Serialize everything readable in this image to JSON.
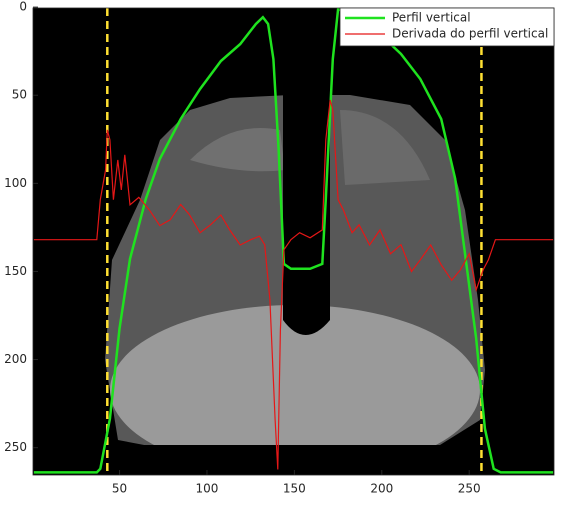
{
  "chart_data": {
    "type": "line",
    "xlim": [
      0.5,
      298.5
    ],
    "ylim": [
      265.5,
      0.5
    ],
    "xticks": [
      50,
      100,
      150,
      200,
      250
    ],
    "yticks": [
      0,
      50,
      100,
      150,
      200,
      250
    ],
    "legend": "upper right",
    "vlines": {
      "color": "#ffe033",
      "values": [
        43,
        257
      ]
    },
    "series": [
      {
        "name": "Perfil vertical",
        "color": "#1fe21f",
        "x": [
          1,
          37,
          39,
          44.5,
          50,
          56,
          65,
          73,
          85,
          96,
          108,
          119,
          128,
          132,
          135,
          138,
          141,
          144,
          148,
          159,
          166,
          168,
          172,
          175,
          182,
          199,
          211,
          222,
          234,
          242,
          248,
          254,
          259,
          264,
          268,
          298
        ],
        "values": [
          264,
          264,
          262,
          233.6,
          182.5,
          142.9,
          108.8,
          86.2,
          63.5,
          46.5,
          30.6,
          21,
          9.6,
          5.7,
          9.6,
          29.5,
          80.5,
          145.7,
          148.5,
          148.5,
          145.7,
          108.8,
          29.5,
          1.1,
          4,
          15.3,
          26.6,
          40.8,
          63.5,
          97.5,
          142.9,
          188.2,
          239.2,
          262,
          264,
          264
        ]
      },
      {
        "name": "Derivada do perfil vertical",
        "color": "#e51717",
        "x": [
          1,
          37,
          39,
          42,
          43,
          44.5,
          46.5,
          49,
          51,
          53,
          56,
          61,
          67,
          73,
          79,
          85,
          90,
          96,
          102,
          108,
          113,
          119,
          125,
          130,
          133,
          136,
          139,
          140.5,
          142,
          144,
          148,
          153,
          159,
          166,
          168,
          170.5,
          172,
          175,
          178,
          183,
          187,
          193,
          199,
          205,
          211,
          217,
          222,
          228,
          234,
          240,
          245,
          250,
          254,
          258,
          261,
          265,
          298
        ],
        "values": [
          132,
          132,
          109.3,
          92.3,
          69.7,
          75.3,
          109.3,
          86.7,
          103.7,
          83.8,
          112.2,
          108,
          115,
          124,
          120.7,
          112,
          117.8,
          128,
          123.5,
          118,
          126.4,
          135,
          132,
          130,
          134.8,
          166,
          234,
          262.4,
          183,
          137.7,
          132,
          128,
          130.9,
          126.4,
          75.3,
          52.7,
          58.3,
          109.3,
          115,
          128,
          123.5,
          135,
          126.4,
          140,
          134.8,
          150,
          143.4,
          135,
          146.2,
          155,
          149,
          140,
          160.4,
          149,
          143.4,
          132,
          132
        ]
      }
    ]
  }
}
